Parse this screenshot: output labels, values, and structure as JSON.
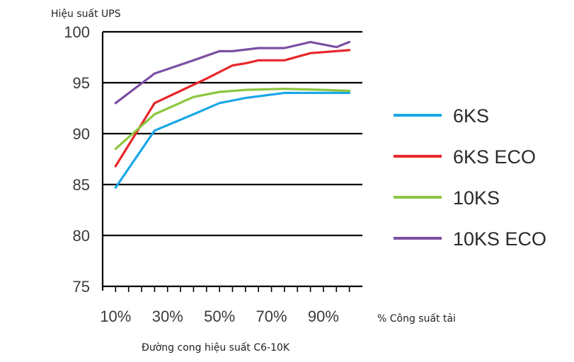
{
  "chart_data": {
    "type": "line",
    "title": "",
    "ylabel": "Hiệu suất UPS",
    "xlabel": "% Công suất tải",
    "caption": "Đường cong hiệu suất C6-10K",
    "ylim": [
      75,
      100
    ],
    "yticks": [
      "75",
      "80",
      "85",
      "90",
      "95",
      "100"
    ],
    "xlim": [
      5,
      105
    ],
    "xticks": [
      "10%",
      "30%",
      "50%",
      "70%",
      "90%"
    ],
    "xtick_values": [
      10,
      30,
      50,
      70,
      90
    ],
    "grid": "horizontal",
    "legend_position": "right",
    "series": [
      {
        "name": "6KS",
        "color": "#1aa7e8",
        "x": [
          10,
          25,
          40,
          50,
          60,
          75,
          90,
          100
        ],
        "y": [
          84.7,
          90.3,
          91.9,
          93.0,
          93.5,
          94.0,
          94.0,
          94.0
        ]
      },
      {
        "name": "6KS ECO",
        "color": "#e8262a",
        "x": [
          10,
          25,
          35,
          45,
          55,
          60,
          65,
          75,
          85,
          100
        ],
        "y": [
          86.8,
          93.0,
          94.2,
          95.4,
          96.7,
          96.9,
          97.2,
          97.2,
          97.9,
          98.2
        ]
      },
      {
        "name": "10KS",
        "color": "#8cc63f",
        "x": [
          10,
          25,
          40,
          50,
          60,
          75,
          90,
          100
        ],
        "y": [
          88.5,
          91.9,
          93.6,
          94.1,
          94.3,
          94.4,
          94.3,
          94.2
        ]
      },
      {
        "name": "10KS ECO",
        "color": "#7b4fa3",
        "x": [
          10,
          25,
          40,
          50,
          55,
          65,
          75,
          85,
          95,
          100
        ],
        "y": [
          93.0,
          95.9,
          97.2,
          98.1,
          98.1,
          98.4,
          98.4,
          99.0,
          98.5,
          99.0
        ]
      }
    ]
  }
}
